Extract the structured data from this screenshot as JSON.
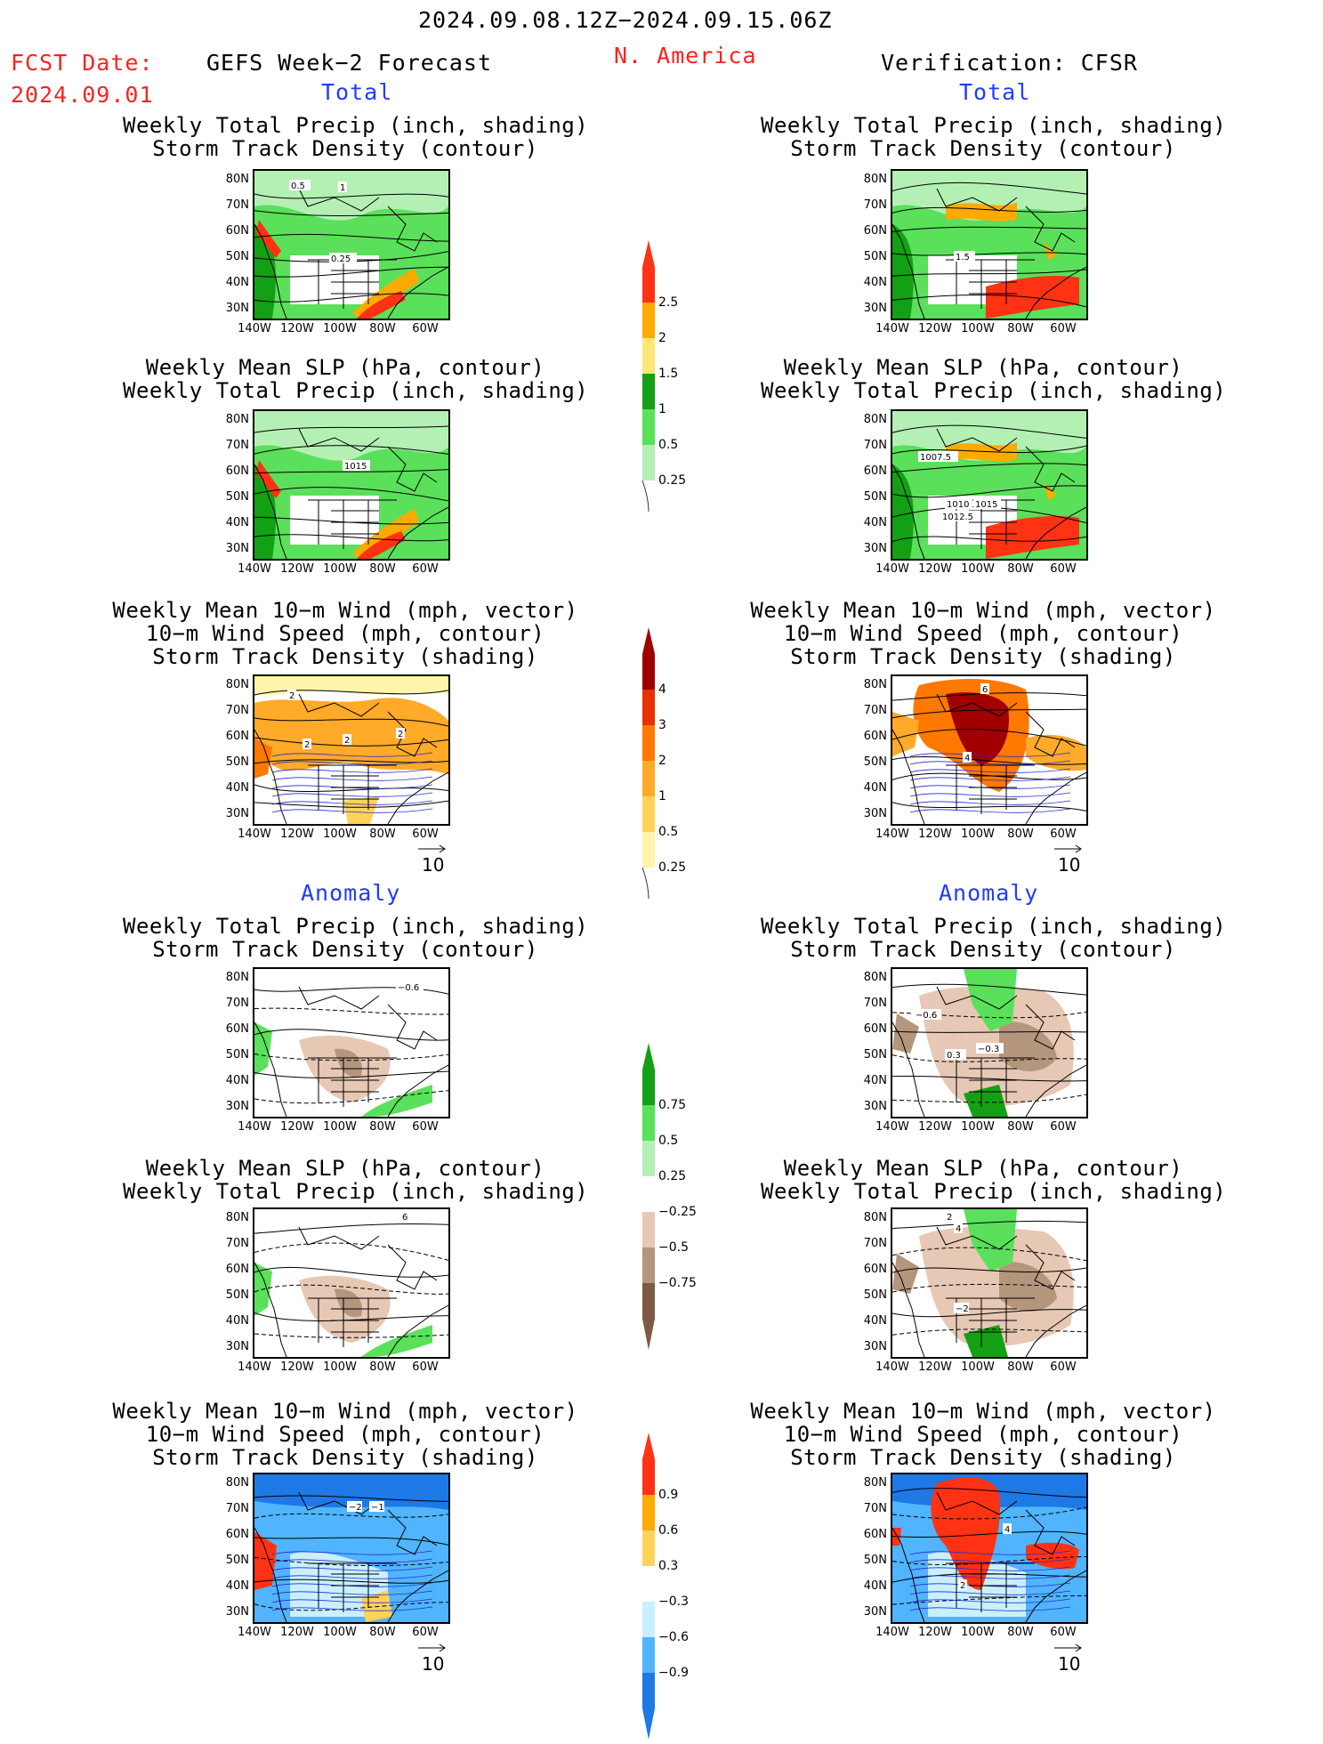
{
  "header": {
    "date_range": "2024.09.08.12Z−2024.09.15.06Z",
    "fcst_label": "FCST Date:",
    "fcst_date": "2024.09.01",
    "left_title": "GEFS Week−2 Forecast",
    "region": "N. America",
    "right_title": "Verification: CFSR"
  },
  "sections": {
    "total": "Total",
    "anomaly": "Anomaly"
  },
  "titles": {
    "precip_track": [
      "Weekly Total Precip (inch, shading)",
      "Storm Track Density (contour)"
    ],
    "slp_precip": [
      "Weekly Mean SLP (hPa, contour)",
      "Weekly Total Precip (inch, shading)"
    ],
    "wind_track": [
      "Weekly Mean 10−m Wind (mph, vector)",
      "10−m Wind Speed (mph, contour)",
      "Storm Track Density (shading)"
    ]
  },
  "axes": {
    "lat_ticks": [
      "80N",
      "70N",
      "60N",
      "50N",
      "40N",
      "30N"
    ],
    "lon_ticks": [
      "140W",
      "120W",
      "100W",
      "80W",
      "60W"
    ]
  },
  "vector_ref": "10",
  "colorbars": {
    "total_precip": [
      "2.5",
      "2",
      "1.5",
      "1",
      "0.5",
      "0.25"
    ],
    "total_track": [
      "4",
      "3",
      "2",
      "1",
      "0.5",
      "0.25"
    ],
    "anom_precip": [
      "0.75",
      "0.5",
      "0.25",
      "−0.25",
      "−0.5",
      "−0.75"
    ],
    "anom_track": [
      "0.9",
      "0.6",
      "0.3",
      "−0.3",
      "−0.6",
      "−0.9"
    ]
  },
  "contour_labels": {
    "l1": [
      "0.5",
      "1",
      "0.25"
    ],
    "r1": [
      "1.5"
    ],
    "l2": [
      "1015"
    ],
    "r2": [
      "1007.5",
      "1010",
      "1015",
      "1012.5"
    ],
    "l3": [
      "2",
      "2",
      "2",
      "2"
    ],
    "r3": [
      "6",
      "4"
    ],
    "l4": [
      "−0.6"
    ],
    "r4": [
      "−0.6",
      "0.3",
      "−0.3"
    ],
    "l5": [
      "6"
    ],
    "r5": [
      "2",
      "4",
      "−2"
    ],
    "l6": [
      "−2",
      "−1"
    ],
    "r6": [
      "4",
      "2"
    ]
  },
  "colors": {
    "precip_light": "#b4f0b4",
    "precip_mid": "#5ae05a",
    "precip_dark": "#14a014",
    "precip_yellow": "#ffe678",
    "precip_orange": "#ffaa00",
    "precip_red": "#ff3214",
    "dry_light": "#e6c8b4",
    "dry_mid": "#b4967d",
    "dry_dark": "#7d5a46",
    "track_pale": "#fff5aa",
    "track_yellow": "#ffd25a",
    "track_orange": "#ffaa28",
    "track_dorange": "#ff7800",
    "track_red": "#e63200",
    "track_dred": "#a00000",
    "cool_light": "#c8f0ff",
    "cool_mid": "#50b4ff",
    "cool_dark": "#1e78e6"
  }
}
